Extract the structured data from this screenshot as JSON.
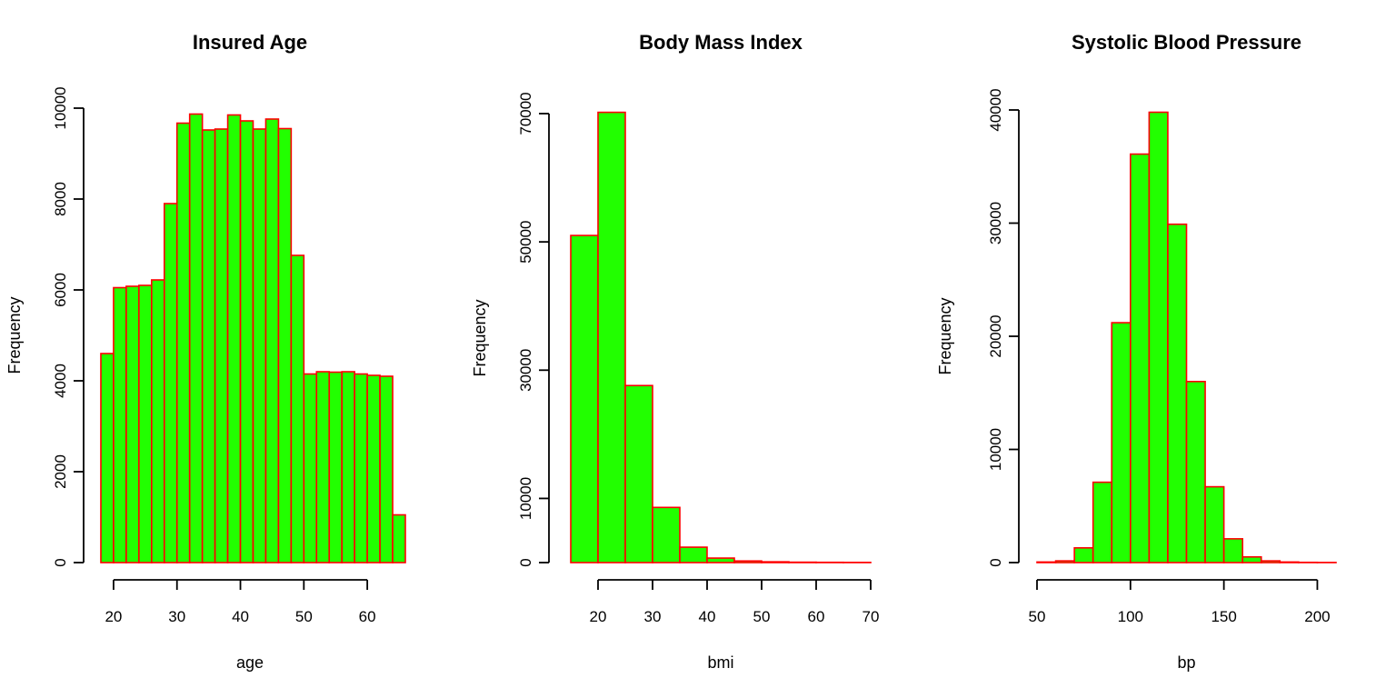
{
  "colors": {
    "bar_fill": "#22ff00",
    "bar_stroke": "#ff0000",
    "axis": "#000000",
    "background": "#ffffff"
  },
  "chart_data": [
    {
      "type": "bar",
      "title": "Insured Age",
      "xlabel": "age",
      "ylabel": "Frequency",
      "bin_width": 2,
      "bin_start": 18,
      "values": [
        4600,
        6050,
        6080,
        6100,
        6220,
        7900,
        9670,
        9870,
        9520,
        9540,
        9850,
        9720,
        9540,
        9760,
        9550,
        6760,
        4150,
        4200,
        4190,
        4200,
        4150,
        4120,
        4100,
        1050
      ],
      "xticks": [
        20,
        30,
        40,
        50,
        60
      ],
      "yticks": [
        0,
        2000,
        4000,
        6000,
        8000,
        10000
      ],
      "xlim": [
        17,
        66
      ],
      "ylim": [
        0,
        10000
      ],
      "grid": false
    },
    {
      "type": "bar",
      "title": "Body Mass Index",
      "xlabel": "bmi",
      "ylabel": "Frequency",
      "bin_width": 5,
      "bin_start": 15,
      "values": [
        51000,
        70200,
        27600,
        8600,
        2400,
        700,
        250,
        120,
        60,
        40,
        30
      ],
      "xticks": [
        20,
        30,
        40,
        50,
        60,
        70
      ],
      "yticks": [
        0,
        10000,
        30000,
        50000,
        70000
      ],
      "xlim": [
        15,
        70
      ],
      "ylim": [
        0,
        70000
      ],
      "grid": false
    },
    {
      "type": "bar",
      "title": "Systolic Blood Pressure",
      "xlabel": "bp",
      "ylabel": "Frequency",
      "bin_width": 10,
      "bin_start": 50,
      "values": [
        50,
        150,
        1300,
        7100,
        21200,
        36100,
        39800,
        29900,
        16000,
        6700,
        2100,
        500,
        150,
        50,
        20,
        10
      ],
      "xticks": [
        50,
        100,
        150,
        200
      ],
      "yticks": [
        0,
        10000,
        20000,
        30000,
        40000
      ],
      "xlim": [
        50,
        210
      ],
      "ylim": [
        0,
        40000
      ],
      "grid": false
    }
  ]
}
